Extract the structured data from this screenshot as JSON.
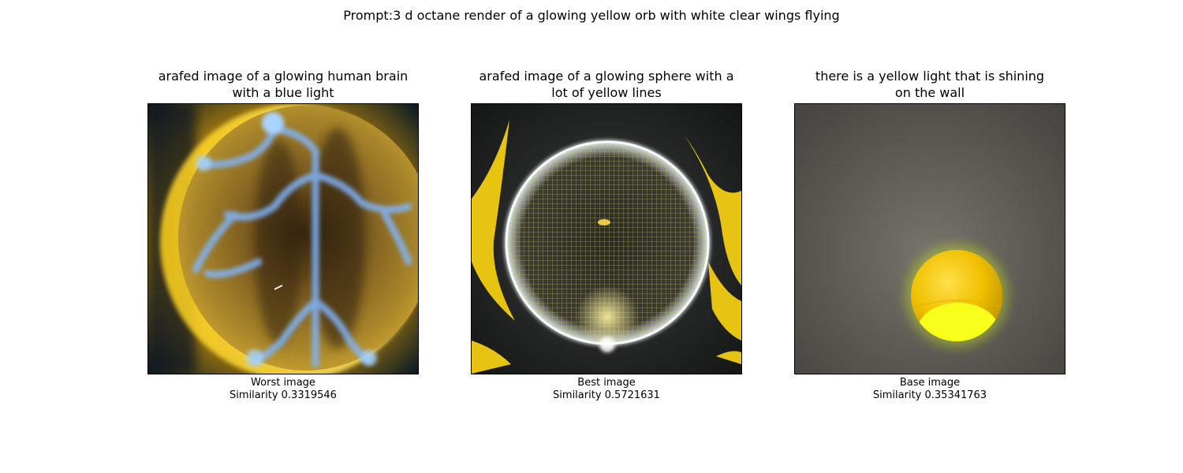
{
  "prompt_title": "Prompt:3 d octane render of a glowing yellow orb with white clear wings flying",
  "panels": [
    {
      "title_line1": "arafed image of a glowing human brain",
      "title_line2": "with a blue light",
      "label": "Worst image",
      "similarity": "Similarity 0.3319546"
    },
    {
      "title_line1": "arafed image of a glowing sphere with a",
      "title_line2": "lot of yellow lines",
      "label": "Best image",
      "similarity": "Similarity 0.5721631"
    },
    {
      "title_line1": "there is a yellow light that is shining",
      "title_line2": "on the wall",
      "label": "Base image",
      "similarity": "Similarity 0.35341763"
    }
  ]
}
